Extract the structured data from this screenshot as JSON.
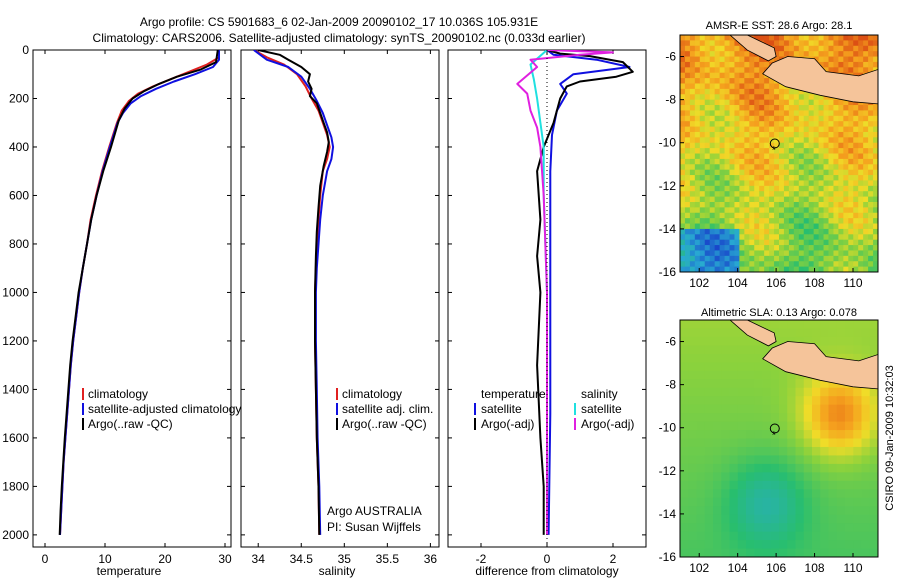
{
  "title_line1": "Argo profile: CS 5901683_6 02-Jan-2009 20090102_17 10.036S 105.931E",
  "title_line2": "Climatology: CARS2006. Satellite-adjusted climatology: synTS_20090102.nc (0.033d earlier)",
  "footer_vertical": "CSIRO 09-Jan-2009 10:32:03",
  "colors": {
    "climatology": "#e02020",
    "satellite": "#1010e0",
    "argo": "#000000",
    "satellite_sal": "#20e0e0",
    "argo_sal_adj": "#e020e0",
    "land": "#f5c49a"
  },
  "chart_data": [
    {
      "type": "line",
      "xlabel": "temperature",
      "ylabel": "",
      "xlim": [
        -2,
        31
      ],
      "ylim": [
        2050,
        0
      ],
      "x_ticks": [
        0,
        10,
        20,
        30
      ],
      "y_ticks": [
        0,
        200,
        400,
        600,
        800,
        1000,
        1200,
        1400,
        1600,
        1800,
        2000
      ],
      "legend": [
        "climatology",
        "satellite-adjusted climatology",
        "Argo(..raw -QC)"
      ],
      "legend_position": "lower-right",
      "series": [
        {
          "name": "climatology",
          "points": [
            [
              29,
              0
            ],
            [
              29,
              30
            ],
            [
              27,
              60
            ],
            [
              24,
              90
            ],
            [
              21,
              120
            ],
            [
              18,
              150
            ],
            [
              15.5,
              180
            ],
            [
              14,
              210
            ],
            [
              12.8,
              250
            ],
            [
              12,
              300
            ],
            [
              10.7,
              400
            ],
            [
              9.5,
              500
            ],
            [
              8.5,
              600
            ],
            [
              7.6,
              700
            ],
            [
              7,
              800
            ],
            [
              6.3,
              900
            ],
            [
              5.7,
              1000
            ],
            [
              5.2,
              1100
            ],
            [
              4.7,
              1200
            ],
            [
              4.3,
              1300
            ],
            [
              4,
              1400
            ],
            [
              3.7,
              1500
            ],
            [
              3.4,
              1600
            ],
            [
              3.1,
              1700
            ],
            [
              2.9,
              1800
            ],
            [
              2.7,
              1900
            ],
            [
              2.5,
              2000
            ]
          ]
        },
        {
          "name": "satellite-adjusted climatology",
          "points": [
            [
              29,
              0
            ],
            [
              29,
              40
            ],
            [
              28,
              70
            ],
            [
              25,
              100
            ],
            [
              21.5,
              130
            ],
            [
              18.5,
              160
            ],
            [
              16,
              190
            ],
            [
              14.3,
              220
            ],
            [
              13,
              260
            ],
            [
              12.1,
              300
            ],
            [
              10.8,
              400
            ],
            [
              9.6,
              500
            ],
            [
              8.6,
              600
            ],
            [
              7.7,
              700
            ],
            [
              7,
              800
            ],
            [
              6.3,
              900
            ],
            [
              5.7,
              1000
            ],
            [
              5.2,
              1100
            ],
            [
              4.7,
              1200
            ],
            [
              4.3,
              1300
            ],
            [
              4,
              1400
            ],
            [
              3.7,
              1500
            ],
            [
              3.4,
              1600
            ],
            [
              3.1,
              1700
            ],
            [
              2.9,
              1800
            ],
            [
              2.7,
              1900
            ],
            [
              2.5,
              2000
            ]
          ]
        },
        {
          "name": "Argo(..raw -QC)",
          "points": [
            [
              28.8,
              0
            ],
            [
              28.5,
              50
            ],
            [
              26,
              80
            ],
            [
              22,
              110
            ],
            [
              19,
              140
            ],
            [
              16.5,
              170
            ],
            [
              14.6,
              200
            ],
            [
              13.3,
              240
            ],
            [
              12.3,
              290
            ],
            [
              11,
              400
            ],
            [
              9.7,
              500
            ],
            [
              8.6,
              600
            ],
            [
              7.7,
              700
            ],
            [
              7,
              800
            ],
            [
              6.3,
              900
            ],
            [
              5.6,
              1000
            ],
            [
              5.1,
              1100
            ],
            [
              4.6,
              1200
            ],
            [
              4.2,
              1300
            ],
            [
              3.9,
              1400
            ],
            [
              3.6,
              1500
            ],
            [
              3.3,
              1600
            ],
            [
              3.05,
              1700
            ],
            [
              2.8,
              1800
            ],
            [
              2.6,
              1900
            ],
            [
              2.45,
              2000
            ]
          ]
        }
      ]
    },
    {
      "type": "line",
      "xlabel": "salinity",
      "ylabel": "",
      "xlim": [
        33.8,
        36.1
      ],
      "ylim": [
        2050,
        0
      ],
      "x_ticks": [
        34,
        34.5,
        35,
        35.5,
        36
      ],
      "legend": [
        "climatology",
        "satellite adj. clim.",
        "Argo(..raw -QC)"
      ],
      "legend_position": "lower-right",
      "annotation": [
        "Argo AUSTRALIA",
        "PI: Susan Wijffels"
      ],
      "series": [
        {
          "name": "climatology",
          "points": [
            [
              33.95,
              0
            ],
            [
              34.1,
              30
            ],
            [
              34.3,
              60
            ],
            [
              34.45,
              100
            ],
            [
              34.55,
              150
            ],
            [
              34.62,
              200
            ],
            [
              34.7,
              250
            ],
            [
              34.75,
              300
            ],
            [
              34.8,
              350
            ],
            [
              34.83,
              400
            ],
            [
              34.8,
              450
            ],
            [
              34.75,
              500
            ],
            [
              34.72,
              600
            ],
            [
              34.7,
              700
            ],
            [
              34.68,
              800
            ],
            [
              34.67,
              900
            ],
            [
              34.66,
              1000
            ],
            [
              34.66,
              1200
            ],
            [
              34.67,
              1400
            ],
            [
              34.68,
              1600
            ],
            [
              34.7,
              1800
            ],
            [
              34.71,
              2000
            ]
          ]
        },
        {
          "name": "satellite adj. clim.",
          "points": [
            [
              33.95,
              0
            ],
            [
              34.1,
              40
            ],
            [
              34.35,
              70
            ],
            [
              34.5,
              110
            ],
            [
              34.6,
              160
            ],
            [
              34.68,
              210
            ],
            [
              34.75,
              260
            ],
            [
              34.8,
              310
            ],
            [
              34.85,
              360
            ],
            [
              34.87,
              400
            ],
            [
              34.85,
              450
            ],
            [
              34.8,
              500
            ],
            [
              34.75,
              600
            ],
            [
              34.72,
              700
            ],
            [
              34.7,
              800
            ],
            [
              34.68,
              900
            ],
            [
              34.67,
              1000
            ],
            [
              34.67,
              1200
            ],
            [
              34.68,
              1400
            ],
            [
              34.69,
              1600
            ],
            [
              34.71,
              1800
            ],
            [
              34.72,
              2000
            ]
          ]
        },
        {
          "name": "Argo(..raw -QC)",
          "points": [
            [
              34.0,
              0
            ],
            [
              34.25,
              20
            ],
            [
              34.35,
              40
            ],
            [
              34.5,
              70
            ],
            [
              34.6,
              100
            ],
            [
              34.58,
              130
            ],
            [
              34.62,
              160
            ],
            [
              34.6,
              190
            ],
            [
              34.68,
              220
            ],
            [
              34.72,
              260
            ],
            [
              34.76,
              300
            ],
            [
              34.8,
              340
            ],
            [
              34.82,
              380
            ],
            [
              34.8,
              420
            ],
            [
              34.76,
              480
            ],
            [
              34.72,
              560
            ],
            [
              34.7,
              650
            ],
            [
              34.68,
              750
            ],
            [
              34.67,
              850
            ],
            [
              34.66,
              1000
            ],
            [
              34.66,
              1200
            ],
            [
              34.67,
              1400
            ],
            [
              34.68,
              1600
            ],
            [
              34.7,
              1800
            ],
            [
              34.71,
              2000
            ]
          ]
        }
      ]
    },
    {
      "type": "line",
      "xlabel": "difference from climatology",
      "ylabel": "",
      "xlim": [
        -3,
        3
      ],
      "ylim": [
        2050,
        0
      ],
      "x_ticks": [
        -2,
        0,
        2
      ],
      "legend_groups": [
        {
          "title": "temperature",
          "entries": [
            "satellite",
            "Argo(-adj)"
          ]
        },
        {
          "title": "salinity",
          "entries": [
            "satellite",
            "Argo(-adj)"
          ]
        }
      ],
      "legend_position": "lower-center",
      "series": [
        {
          "name": "temperature satellite",
          "points": [
            [
              0,
              0
            ],
            [
              0.2,
              20
            ],
            [
              1.5,
              40
            ],
            [
              2.5,
              70
            ],
            [
              0.8,
              100
            ],
            [
              0.4,
              140
            ],
            [
              0.6,
              180
            ],
            [
              0.3,
              250
            ],
            [
              0.15,
              350
            ],
            [
              0.1,
              500
            ],
            [
              0.1,
              1000
            ],
            [
              0.1,
              1500
            ],
            [
              0.05,
              2000
            ]
          ]
        },
        {
          "name": "temperature Argo(-adj)",
          "points": [
            [
              0,
              0
            ],
            [
              0.4,
              15
            ],
            [
              1.3,
              25
            ],
            [
              2.3,
              50
            ],
            [
              2.6,
              90
            ],
            [
              2.1,
              110
            ],
            [
              1,
              130
            ],
            [
              0.6,
              150
            ],
            [
              0.4,
              200
            ],
            [
              0.2,
              300
            ],
            [
              -0.1,
              400
            ],
            [
              -0.3,
              500
            ],
            [
              -0.2,
              700
            ],
            [
              -0.3,
              850
            ],
            [
              -0.2,
              1000
            ],
            [
              -0.3,
              1300
            ],
            [
              -0.2,
              1600
            ],
            [
              -0.1,
              1800
            ],
            [
              -0.1,
              2000
            ]
          ]
        },
        {
          "name": "salinity satellite",
          "points": [
            [
              0,
              0
            ],
            [
              -0.5,
              60
            ],
            [
              -0.4,
              120
            ],
            [
              -0.3,
              200
            ],
            [
              -0.2,
              300
            ],
            [
              -0.1,
              400
            ],
            [
              -0.1,
              600
            ],
            [
              0,
              1000
            ],
            [
              0,
              2000
            ]
          ]
        },
        {
          "name": "salinity Argo(-adj)",
          "points": [
            [
              0,
              0
            ],
            [
              2,
              10
            ],
            [
              1,
              20
            ],
            [
              -0.5,
              40
            ],
            [
              -0.3,
              70
            ],
            [
              -0.9,
              140
            ],
            [
              -0.6,
              180
            ],
            [
              -0.5,
              250
            ],
            [
              -0.3,
              320
            ],
            [
              -0.2,
              400
            ],
            [
              -0.1,
              600
            ],
            [
              0,
              1000
            ],
            [
              0,
              2000
            ]
          ]
        }
      ]
    },
    {
      "type": "heatmap",
      "title": "AMSR-E SST: 28.6 Argo: 28.1",
      "xlim": [
        101,
        111.3
      ],
      "ylim": [
        -16,
        -5
      ],
      "x_ticks": [
        102,
        104,
        106,
        108,
        110
      ],
      "y_ticks": [
        -6,
        -8,
        -10,
        -12,
        -14,
        -16
      ],
      "argo_position": [
        105.931,
        -10.036
      ]
    },
    {
      "type": "heatmap",
      "title": "Altimetric SLA: 0.13 Argo: 0.078",
      "xlim": [
        101,
        111.3
      ],
      "ylim": [
        -16,
        -5
      ],
      "x_ticks": [
        102,
        104,
        106,
        108,
        110
      ],
      "y_ticks": [
        -6,
        -8,
        -10,
        -12,
        -14,
        -16
      ],
      "argo_position": [
        105.931,
        -10.036
      ]
    }
  ]
}
